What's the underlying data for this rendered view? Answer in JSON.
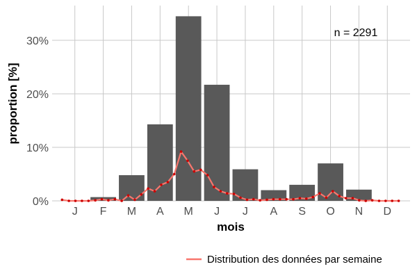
{
  "chart_data": {
    "type": "bar",
    "title": "",
    "xlabel": "mois",
    "ylabel": "proportion [%]",
    "annotation": "n = 2291",
    "categories": [
      "J",
      "F",
      "M",
      "A",
      "M",
      "J",
      "J",
      "A",
      "S",
      "O",
      "N",
      "D"
    ],
    "values": [
      0.0,
      0.7,
      4.8,
      14.3,
      34.5,
      21.7,
      5.9,
      2.0,
      3.0,
      7.0,
      2.1,
      0.0
    ],
    "y_ticks": [
      {
        "value": 0,
        "label": "0%"
      },
      {
        "value": 10,
        "label": "10%"
      },
      {
        "value": 20,
        "label": "20%"
      },
      {
        "value": 30,
        "label": "30%"
      }
    ],
    "ylim": [
      0,
      36.5
    ],
    "grid": true,
    "bar_color": "#595959",
    "line_series": {
      "name": "Distribution des données par semaine",
      "color": "#f8766d",
      "point_color": "#cc0000",
      "x_month": [
        0.55,
        0.79,
        1.02,
        1.25,
        1.48,
        1.72,
        1.95,
        2.18,
        2.41,
        2.65,
        2.88,
        3.11,
        3.34,
        3.58,
        3.81,
        4.04,
        4.27,
        4.5,
        4.74,
        4.97,
        5.2,
        5.43,
        5.67,
        5.9,
        6.13,
        6.36,
        6.6,
        6.83,
        7.06,
        7.29,
        7.52,
        7.76,
        7.99,
        8.22,
        8.45,
        8.69,
        8.92,
        9.15,
        9.38,
        9.62,
        9.85,
        10.08,
        10.31,
        10.54,
        10.78,
        11.01,
        11.24,
        11.47,
        11.71,
        11.94,
        12.17,
        12.4
      ],
      "values": [
        0.2,
        0.0,
        0.0,
        0.0,
        0.0,
        0.1,
        0.3,
        0.1,
        0.3,
        0.0,
        1.0,
        0.2,
        1.2,
        2.3,
        1.8,
        3.0,
        3.5,
        5.0,
        9.2,
        7.5,
        5.5,
        5.8,
        4.8,
        2.6,
        1.8,
        1.4,
        1.3,
        0.6,
        0.2,
        0.3,
        0.1,
        0.2,
        0.3,
        0.3,
        0.3,
        0.3,
        0.5,
        0.4,
        0.7,
        1.4,
        0.6,
        1.8,
        0.9,
        0.5,
        0.5,
        0.1,
        0.0,
        0.1,
        0.0,
        0.0,
        0.0,
        0.0
      ]
    },
    "legend": {
      "position": "bottom"
    }
  }
}
